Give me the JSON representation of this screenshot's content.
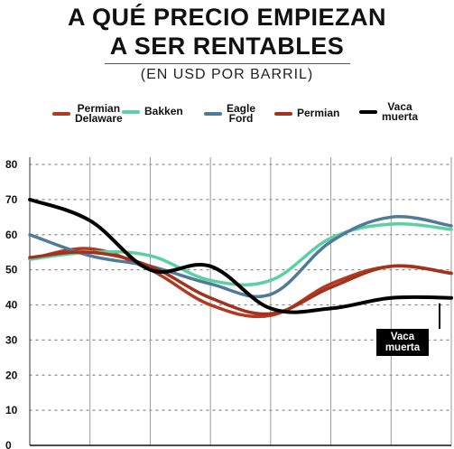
{
  "header": {
    "title_line1": "A QUÉ PRECIO EMPIEZAN",
    "title_line2": "A SER RENTABLES",
    "subtitle": "(EN USD POR BARRIL)"
  },
  "chart_data": {
    "type": "line",
    "title": "A QUÉ PRECIO EMPIEZAN A SER RENTABLES",
    "subtitle": "(EN USD POR BARRIL)",
    "xlabel": "",
    "ylabel": "",
    "ylim": [
      0,
      80
    ],
    "yticks": [
      0,
      10,
      20,
      30,
      40,
      50,
      60,
      70,
      80
    ],
    "grid": "horizontal dotted, vertical solid",
    "legend": "top",
    "x": [
      0,
      1,
      2,
      3,
      4,
      5,
      6,
      7
    ],
    "series": [
      {
        "name": "Permian\nDelaware",
        "color": "#b23a22",
        "values": [
          53,
          56,
          50,
          40,
          37,
          46,
          51,
          49
        ]
      },
      {
        "name": "Bakken",
        "color": "#5bd0a0",
        "values": [
          53,
          55,
          54,
          47,
          47,
          59,
          63,
          61.5
        ]
      },
      {
        "name": "Eagle\nFord",
        "color": "#4f7a99",
        "values": [
          60,
          54,
          51,
          46,
          43,
          58,
          65,
          62.5
        ]
      },
      {
        "name": "Permian",
        "color": "#a2321c",
        "values": [
          53.5,
          55,
          51,
          42,
          37.5,
          45,
          51,
          49
        ]
      },
      {
        "name": "Vaca\nmuerta",
        "color": "#000000",
        "values": [
          70,
          64,
          50,
          51,
          39,
          39,
          42,
          42
        ]
      }
    ],
    "annotation": {
      "text": "Vaca\nmuerta"
    }
  }
}
